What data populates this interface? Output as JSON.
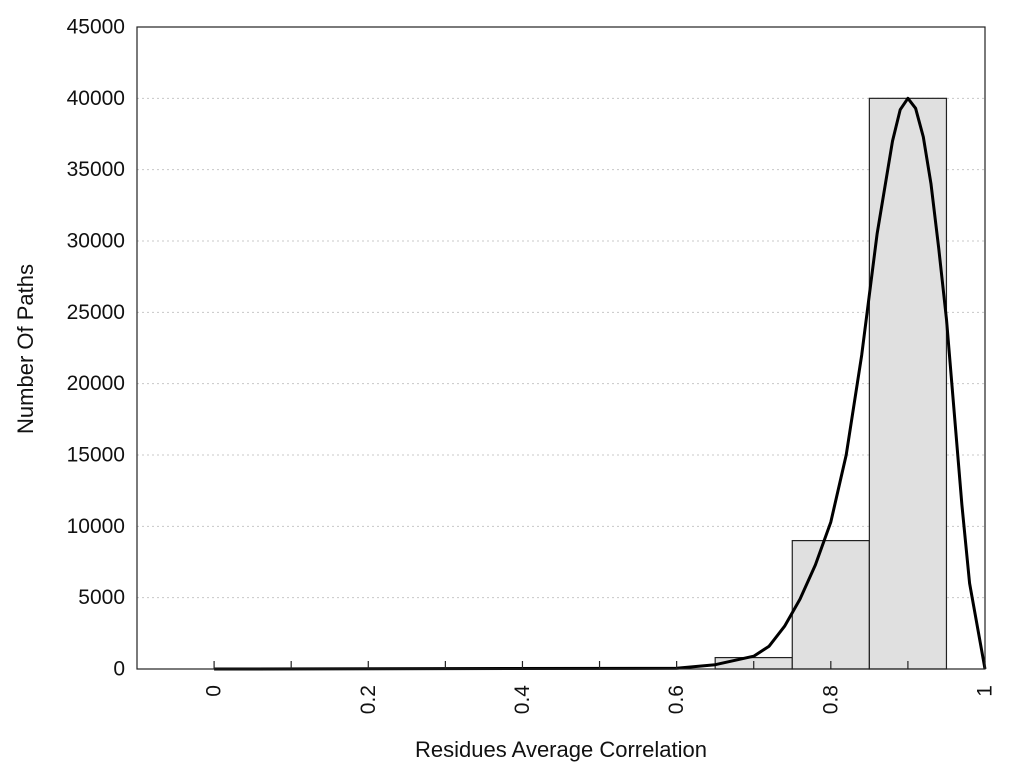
{
  "chart_data": {
    "type": "bar",
    "title": "",
    "xlabel": "Residues Average Correlation",
    "ylabel": "Number Of Paths",
    "xlim": [
      -0.1,
      1.0
    ],
    "ylim": [
      0,
      45000
    ],
    "x_ticks": [
      0,
      0.2,
      0.4,
      0.6,
      0.8,
      1
    ],
    "x_tick_labels": [
      "0",
      "0.2",
      "0.4",
      "0.6",
      "0.8",
      "1"
    ],
    "x_minor_ticks": [
      0.1,
      0.3,
      0.5,
      0.7,
      0.9
    ],
    "y_ticks": [
      0,
      5000,
      10000,
      15000,
      20000,
      25000,
      30000,
      35000,
      40000,
      45000
    ],
    "y_tick_labels": [
      "0",
      "5000",
      "10000",
      "15000",
      "20000",
      "25000",
      "30000",
      "35000",
      "40000",
      "45000"
    ],
    "grid": "horizontal dotted",
    "bars": [
      {
        "x_start": 0.65,
        "x_end": 0.75,
        "value": 800
      },
      {
        "x_start": 0.75,
        "x_end": 0.85,
        "value": 9000
      },
      {
        "x_start": 0.85,
        "x_end": 0.95,
        "value": 40000
      }
    ],
    "fit_curve": {
      "x": [
        0,
        0.6,
        0.65,
        0.7,
        0.72,
        0.74,
        0.76,
        0.78,
        0.8,
        0.82,
        0.84,
        0.86,
        0.88,
        0.89,
        0.9,
        0.91,
        0.92,
        0.93,
        0.94,
        0.95,
        0.96,
        0.97,
        0.98,
        1.0
      ],
      "y": [
        0,
        50,
        300,
        900,
        1600,
        3000,
        4900,
        7300,
        10300,
        15000,
        22000,
        30500,
        37000,
        39200,
        40000,
        39300,
        37300,
        34000,
        29500,
        24500,
        18000,
        11500,
        6000,
        0
      ]
    },
    "colors": {
      "bar_fill": "#e0e0e0",
      "bar_stroke": "#222222",
      "curve": "#000000",
      "grid": "#c8c8c8"
    }
  }
}
